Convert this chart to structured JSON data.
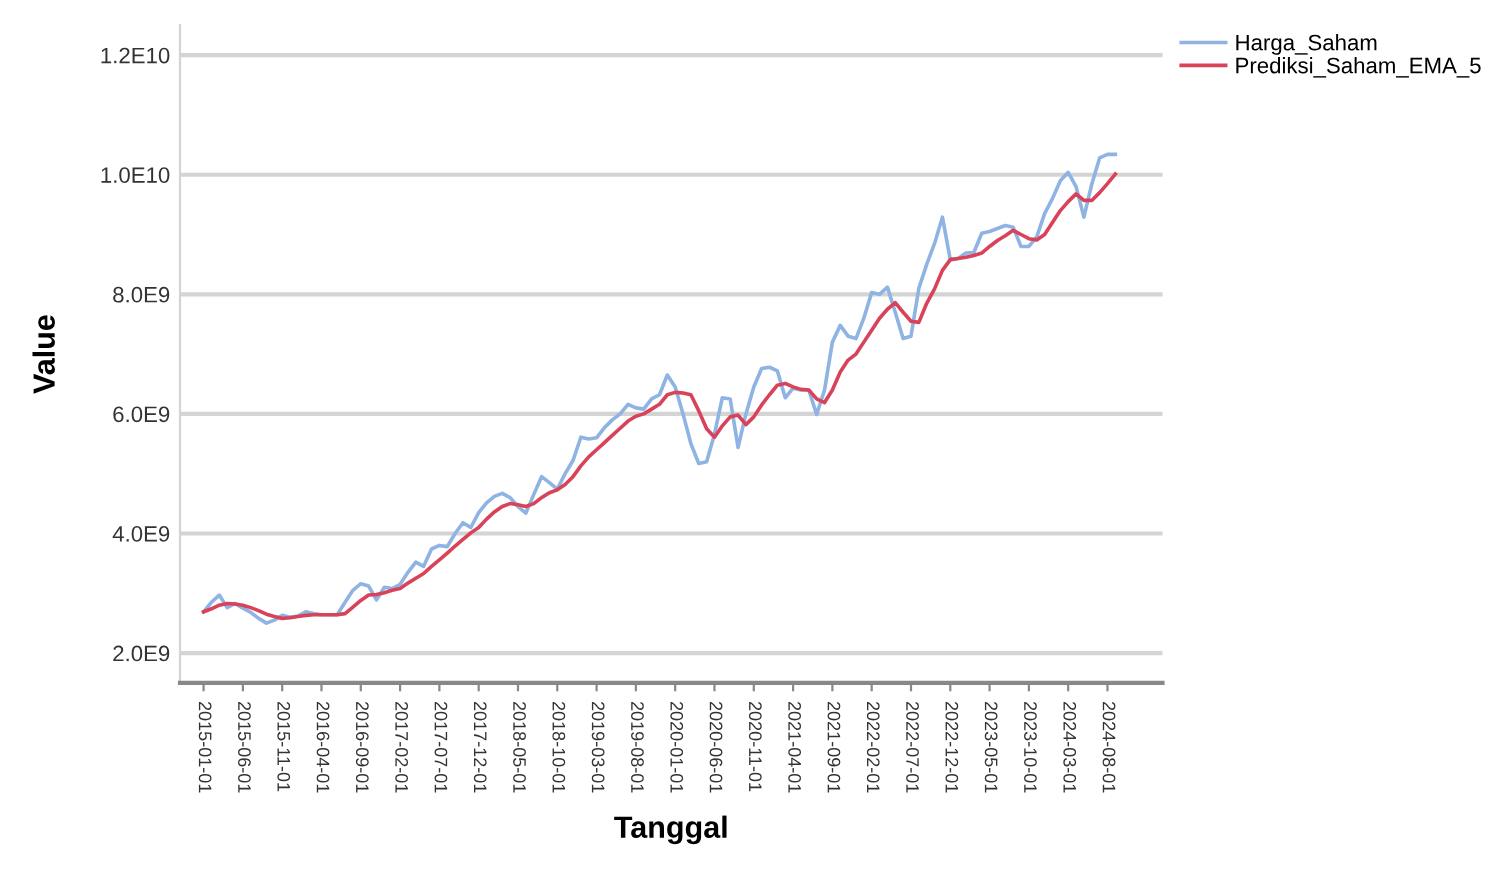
{
  "chart_data": {
    "type": "line",
    "xlabel": "Tanggal",
    "ylabel": "Value",
    "categories": [
      "2015-01-01",
      null,
      null,
      null,
      null,
      "2015-06-01",
      null,
      null,
      null,
      null,
      "2015-11-01",
      null,
      null,
      null,
      null,
      "2016-04-01",
      null,
      null,
      null,
      null,
      "2016-09-01",
      null,
      null,
      null,
      null,
      "2017-02-01",
      null,
      null,
      null,
      null,
      "2017-07-01",
      null,
      null,
      null,
      null,
      "2017-12-01",
      null,
      null,
      null,
      null,
      "2018-05-01",
      null,
      null,
      null,
      null,
      "2018-10-01",
      null,
      null,
      null,
      null,
      "2019-03-01",
      null,
      null,
      null,
      null,
      "2019-08-01",
      null,
      null,
      null,
      null,
      "2020-01-01",
      null,
      null,
      null,
      null,
      "2020-06-01",
      null,
      null,
      null,
      null,
      "2020-11-01",
      null,
      null,
      null,
      null,
      "2021-04-01",
      null,
      null,
      null,
      null,
      "2021-09-01",
      null,
      null,
      null,
      null,
      "2022-02-01",
      null,
      null,
      null,
      null,
      "2022-07-01",
      null,
      null,
      null,
      null,
      "2022-12-01",
      null,
      null,
      null,
      null,
      "2023-05-01",
      null,
      null,
      null,
      null,
      "2023-10-01",
      null,
      null,
      null,
      null,
      "2024-03-01",
      null,
      null,
      null,
      null,
      "2024-08-01",
      null
    ],
    "series": [
      {
        "name": "Harga_Saham",
        "color": "#8fb4e3",
        "values": [
          2690000000.0,
          2850000000.0,
          2970000000.0,
          2760000000.0,
          2830000000.0,
          2750000000.0,
          2680000000.0,
          2580000000.0,
          2500000000.0,
          2550000000.0,
          2630000000.0,
          2600000000.0,
          2620000000.0,
          2690000000.0,
          2660000000.0,
          2640000000.0,
          2640000000.0,
          2640000000.0,
          2850000000.0,
          3050000000.0,
          3160000000.0,
          3120000000.0,
          2890000000.0,
          3100000000.0,
          3080000000.0,
          3150000000.0,
          3350000000.0,
          3520000000.0,
          3450000000.0,
          3740000000.0,
          3800000000.0,
          3780000000.0,
          4000000000.0,
          4180000000.0,
          4100000000.0,
          4350000000.0,
          4510000000.0,
          4620000000.0,
          4670000000.0,
          4600000000.0,
          4450000000.0,
          4340000000.0,
          4650000000.0,
          4950000000.0,
          4850000000.0,
          4740000000.0,
          5000000000.0,
          5220000000.0,
          5610000000.0,
          5580000000.0,
          5600000000.0,
          5770000000.0,
          5900000000.0,
          6000000000.0,
          6160000000.0,
          6100000000.0,
          6080000000.0,
          6250000000.0,
          6320000000.0,
          6650000000.0,
          6450000000.0,
          6000000000.0,
          5500000000.0,
          5170000000.0,
          5200000000.0,
          5660000000.0,
          6270000000.0,
          6250000000.0,
          5440000000.0,
          6000000000.0,
          6450000000.0,
          6760000000.0,
          6780000000.0,
          6720000000.0,
          6270000000.0,
          6430000000.0,
          6400000000.0,
          6400000000.0,
          5990000000.0,
          6400000000.0,
          7200000000.0,
          7480000000.0,
          7300000000.0,
          7260000000.0,
          7600000000.0,
          8030000000.0,
          8000000000.0,
          8120000000.0,
          7700000000.0,
          7260000000.0,
          7300000000.0,
          8100000000.0,
          8500000000.0,
          8850000000.0,
          9290000000.0,
          8580000000.0,
          8600000000.0,
          8690000000.0,
          8700000000.0,
          9020000000.0,
          9050000000.0,
          9100000000.0,
          9150000000.0,
          9120000000.0,
          8800000000.0,
          8800000000.0,
          8960000000.0,
          9350000000.0,
          9600000000.0,
          9900000000.0,
          10040000000.0,
          9800000000.0,
          9290000000.0,
          9840000000.0,
          10280000000.0,
          10340000000.0,
          10340000000.0
        ]
      },
      {
        "name": "Prediksi_Saham_EMA_5",
        "color": "#d9435a",
        "values": [
          2690000000.0,
          2740000000.0,
          2800000000.0,
          2830000000.0,
          2820000000.0,
          2800000000.0,
          2760000000.0,
          2710000000.0,
          2650000000.0,
          2610000000.0,
          2580000000.0,
          2590000000.0,
          2610000000.0,
          2630000000.0,
          2640000000.0,
          2640000000.0,
          2640000000.0,
          2640000000.0,
          2660000000.0,
          2770000000.0,
          2880000000.0,
          2970000000.0,
          2980000000.0,
          3010000000.0,
          3050000000.0,
          3080000000.0,
          3170000000.0,
          3250000000.0,
          3330000000.0,
          3450000000.0,
          3560000000.0,
          3670000000.0,
          3790000000.0,
          3900000000.0,
          4010000000.0,
          4100000000.0,
          4240000000.0,
          4360000000.0,
          4450000000.0,
          4500000000.0,
          4480000000.0,
          4450000000.0,
          4500000000.0,
          4600000000.0,
          4680000000.0,
          4730000000.0,
          4820000000.0,
          4950000000.0,
          5130000000.0,
          5280000000.0,
          5400000000.0,
          5520000000.0,
          5640000000.0,
          5760000000.0,
          5880000000.0,
          5960000000.0,
          6000000000.0,
          6080000000.0,
          6160000000.0,
          6320000000.0,
          6360000000.0,
          6350000000.0,
          6320000000.0,
          6050000000.0,
          5750000000.0,
          5610000000.0,
          5800000000.0,
          5950000000.0,
          5980000000.0,
          5820000000.0,
          5950000000.0,
          6150000000.0,
          6320000000.0,
          6480000000.0,
          6510000000.0,
          6450000000.0,
          6410000000.0,
          6400000000.0,
          6250000000.0,
          6190000000.0,
          6400000000.0,
          6700000000.0,
          6900000000.0,
          7000000000.0,
          7200000000.0,
          7400000000.0,
          7600000000.0,
          7750000000.0,
          7860000000.0,
          7700000000.0,
          7550000000.0,
          7530000000.0,
          7850000000.0,
          8090000000.0,
          8400000000.0,
          8580000000.0,
          8600000000.0,
          8620000000.0,
          8650000000.0,
          8690000000.0,
          8800000000.0,
          8900000000.0,
          8980000000.0,
          9070000000.0,
          9000000000.0,
          8930000000.0,
          8910000000.0,
          9000000000.0,
          9200000000.0,
          9400000000.0,
          9550000000.0,
          9680000000.0,
          9570000000.0,
          9570000000.0,
          9700000000.0,
          9850000000.0,
          10010000000.0
        ]
      }
    ],
    "ylim": [
      1500000000.0,
      12500000000.0
    ],
    "yticks": [
      {
        "value": 2000000000.0,
        "label": "2.0E9"
      },
      {
        "value": 4000000000.0,
        "label": "4.0E9"
      },
      {
        "value": 6000000000.0,
        "label": "6.0E9"
      },
      {
        "value": 8000000000.0,
        "label": "8.0E9"
      },
      {
        "value": 10000000000.0,
        "label": "1.0E10"
      },
      {
        "value": 12000000000.0,
        "label": "1.2E10"
      }
    ],
    "grid": "y",
    "legend": "top right",
    "marker": "none",
    "line_style": "solid"
  }
}
